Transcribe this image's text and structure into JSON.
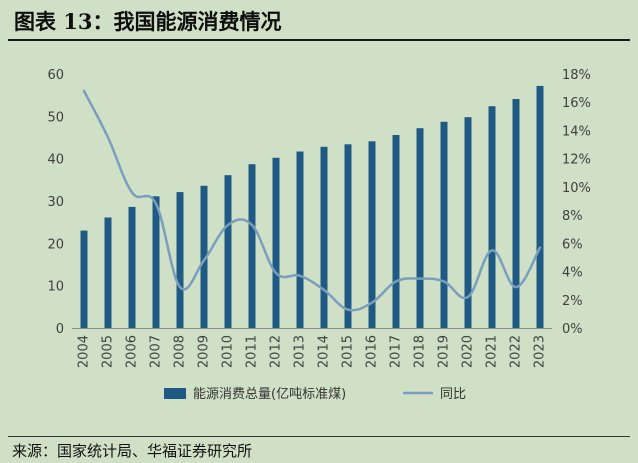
{
  "header": {
    "title": "图表 13：我国能源消费情况"
  },
  "footer": {
    "source": "来源：国家统计局、华福证券研究所"
  },
  "chart_data": {
    "type": "bar+line",
    "categories": [
      "2004",
      "2005",
      "2006",
      "2007",
      "2008",
      "2009",
      "2010",
      "2011",
      "2012",
      "2013",
      "2014",
      "2015",
      "2016",
      "2017",
      "2018",
      "2019",
      "2020",
      "2021",
      "2022",
      "2023"
    ],
    "series": [
      {
        "name": "能源消费总量(亿吨标准煤)",
        "type": "bar",
        "axis": "left",
        "color": "#1f5a84",
        "values": [
          23.0,
          26.1,
          28.6,
          31.1,
          32.1,
          33.6,
          36.1,
          38.7,
          40.2,
          41.7,
          42.8,
          43.4,
          44.1,
          45.6,
          47.2,
          48.7,
          49.8,
          52.4,
          54.1,
          57.2
        ]
      },
      {
        "name": "同比",
        "type": "line",
        "axis": "right",
        "color": "#7a9fbc",
        "values": [
          16.8,
          13.5,
          9.6,
          8.8,
          2.9,
          4.8,
          7.3,
          7.3,
          3.9,
          3.7,
          2.7,
          1.3,
          1.8,
          3.3,
          3.5,
          3.3,
          2.2,
          5.5,
          2.9,
          5.7
        ]
      }
    ],
    "y_left": {
      "min": 0,
      "max": 60,
      "step": 10,
      "ticks": [
        "0",
        "10",
        "20",
        "30",
        "40",
        "50",
        "60"
      ]
    },
    "y_right": {
      "min": 0,
      "max": 18,
      "step": 2,
      "ticks": [
        "0%",
        "2%",
        "4%",
        "6%",
        "8%",
        "10%",
        "12%",
        "14%",
        "16%",
        "18%"
      ]
    },
    "grid": false,
    "legend": "bottom-center"
  }
}
